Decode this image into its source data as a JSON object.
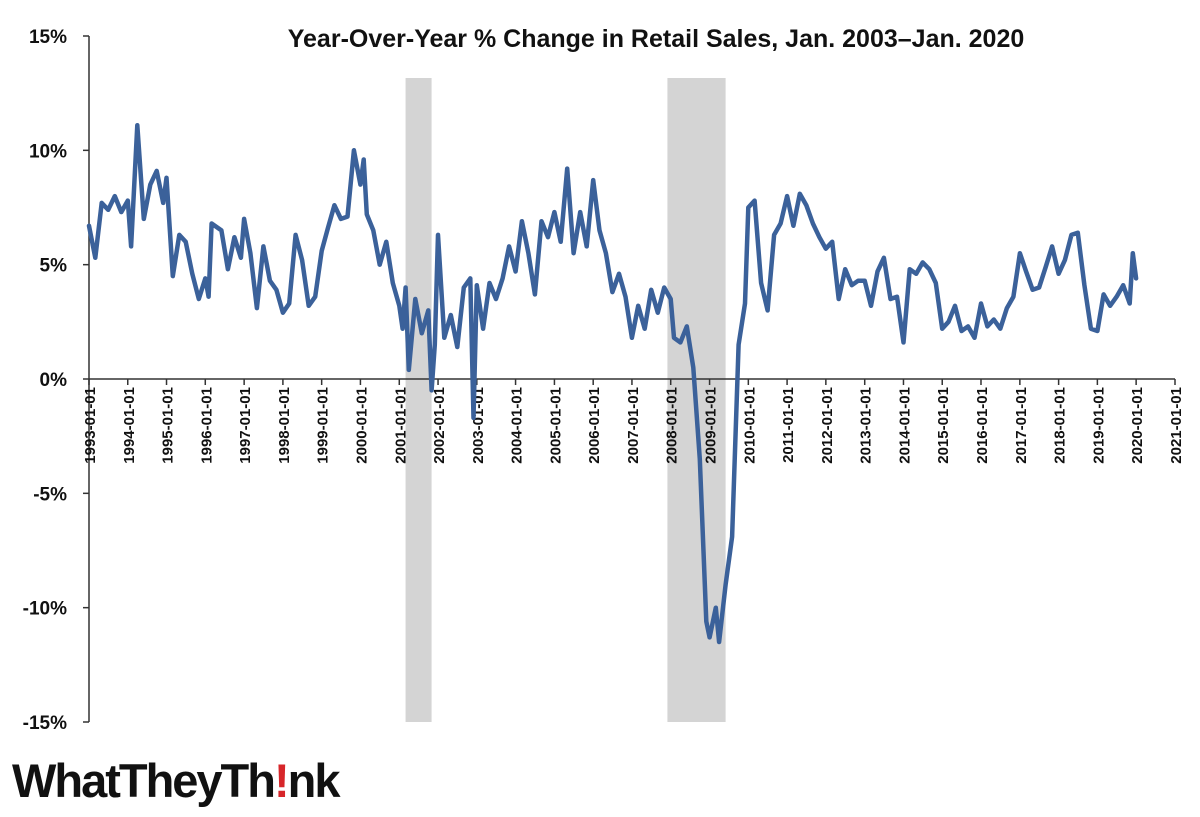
{
  "chart_data": {
    "type": "line",
    "title": "Year-Over-Year % Change in Retail Sales, Jan. 2003–Jan. 2020",
    "xlabel": "",
    "ylabel": "",
    "ylim": [
      -15,
      15
    ],
    "yticks": [
      15,
      10,
      5,
      0,
      -5,
      -10,
      -15
    ],
    "ytick_labels": [
      "15%",
      "10%",
      "5%",
      "0%",
      "-5%",
      "-10%",
      "-15%"
    ],
    "xlim": [
      "1993-01-01",
      "2021-01-01"
    ],
    "xtick_labels": [
      "1993-01-01",
      "1994-01-01",
      "1995-01-01",
      "1996-01-01",
      "1997-01-01",
      "1998-01-01",
      "1999-01-01",
      "2000-01-01",
      "2001-01-01",
      "2002-01-01",
      "2003-01-01",
      "2004-01-01",
      "2005-01-01",
      "2006-01-01",
      "2007-01-01",
      "2008-01-01",
      "2009-01-01",
      "2010-01-01",
      "2011-01-01",
      "2012-01-01",
      "2013-01-01",
      "2014-01-01",
      "2015-01-01",
      "2016-01-01",
      "2017-01-01",
      "2018-01-01",
      "2019-01-01",
      "2020-01-01",
      "2021-01-01"
    ],
    "grid": false,
    "recessions": [
      {
        "start": "2001-03-01",
        "end": "2001-11-01"
      },
      {
        "start": "2007-12-01",
        "end": "2009-06-01"
      }
    ],
    "series": [
      {
        "color": "#3b619a",
        "points": [
          [
            "1993-01-01",
            6.7
          ],
          [
            "1993-03-01",
            5.3
          ],
          [
            "1993-05-01",
            7.7
          ],
          [
            "1993-07-01",
            7.4
          ],
          [
            "1993-09-01",
            8.0
          ],
          [
            "1993-11-01",
            7.3
          ],
          [
            "1994-01-01",
            7.8
          ],
          [
            "1994-02-01",
            5.8
          ],
          [
            "1994-04-01",
            11.1
          ],
          [
            "1994-06-01",
            7.0
          ],
          [
            "1994-08-01",
            8.5
          ],
          [
            "1994-10-01",
            9.1
          ],
          [
            "1994-12-01",
            7.7
          ],
          [
            "1995-01-01",
            8.8
          ],
          [
            "1995-03-01",
            4.5
          ],
          [
            "1995-05-01",
            6.3
          ],
          [
            "1995-07-01",
            6.0
          ],
          [
            "1995-09-01",
            4.6
          ],
          [
            "1995-11-01",
            3.5
          ],
          [
            "1996-01-01",
            4.4
          ],
          [
            "1996-02-01",
            3.6
          ],
          [
            "1996-03-01",
            6.8
          ],
          [
            "1996-06-01",
            6.5
          ],
          [
            "1996-08-01",
            4.8
          ],
          [
            "1996-10-01",
            6.2
          ],
          [
            "1996-12-01",
            5.3
          ],
          [
            "1997-01-01",
            7.0
          ],
          [
            "1997-03-01",
            5.5
          ],
          [
            "1997-05-01",
            3.1
          ],
          [
            "1997-07-01",
            5.8
          ],
          [
            "1997-09-01",
            4.3
          ],
          [
            "1997-11-01",
            3.9
          ],
          [
            "1998-01-01",
            2.9
          ],
          [
            "1998-03-01",
            3.3
          ],
          [
            "1998-05-01",
            6.3
          ],
          [
            "1998-07-01",
            5.2
          ],
          [
            "1998-09-01",
            3.2
          ],
          [
            "1998-11-01",
            3.6
          ],
          [
            "1999-01-01",
            5.6
          ],
          [
            "1999-03-01",
            6.6
          ],
          [
            "1999-05-01",
            7.6
          ],
          [
            "1999-07-01",
            7.0
          ],
          [
            "1999-09-01",
            7.1
          ],
          [
            "1999-11-01",
            10.0
          ],
          [
            "2000-01-01",
            8.5
          ],
          [
            "2000-02-01",
            9.6
          ],
          [
            "2000-03-01",
            7.2
          ],
          [
            "2000-05-01",
            6.5
          ],
          [
            "2000-07-01",
            5.0
          ],
          [
            "2000-09-01",
            6.0
          ],
          [
            "2000-11-01",
            4.2
          ],
          [
            "2001-01-01",
            3.2
          ],
          [
            "2001-02-01",
            2.2
          ],
          [
            "2001-03-01",
            4.0
          ],
          [
            "2001-04-01",
            0.4
          ],
          [
            "2001-06-01",
            3.5
          ],
          [
            "2001-08-01",
            2.0
          ],
          [
            "2001-10-01",
            3.0
          ],
          [
            "2001-11-01",
            -0.5
          ],
          [
            "2001-12-01",
            1.5
          ],
          [
            "2002-01-01",
            6.3
          ],
          [
            "2002-03-01",
            1.8
          ],
          [
            "2002-05-01",
            2.8
          ],
          [
            "2002-07-01",
            1.4
          ],
          [
            "2002-09-01",
            4.0
          ],
          [
            "2002-11-01",
            4.4
          ],
          [
            "2002-12-01",
            -1.7
          ],
          [
            "2003-01-01",
            4.1
          ],
          [
            "2003-03-01",
            2.2
          ],
          [
            "2003-05-01",
            4.2
          ],
          [
            "2003-07-01",
            3.5
          ],
          [
            "2003-09-01",
            4.4
          ],
          [
            "2003-11-01",
            5.8
          ],
          [
            "2004-01-01",
            4.7
          ],
          [
            "2004-03-01",
            6.9
          ],
          [
            "2004-05-01",
            5.5
          ],
          [
            "2004-07-01",
            3.7
          ],
          [
            "2004-09-01",
            6.9
          ],
          [
            "2004-11-01",
            6.2
          ],
          [
            "2005-01-01",
            7.3
          ],
          [
            "2005-03-01",
            6.0
          ],
          [
            "2005-05-01",
            9.2
          ],
          [
            "2005-07-01",
            5.5
          ],
          [
            "2005-09-01",
            7.3
          ],
          [
            "2005-11-01",
            5.8
          ],
          [
            "2006-01-01",
            8.7
          ],
          [
            "2006-03-01",
            6.5
          ],
          [
            "2006-05-01",
            5.5
          ],
          [
            "2006-07-01",
            3.8
          ],
          [
            "2006-09-01",
            4.6
          ],
          [
            "2006-11-01",
            3.6
          ],
          [
            "2007-01-01",
            1.8
          ],
          [
            "2007-03-01",
            3.2
          ],
          [
            "2007-05-01",
            2.2
          ],
          [
            "2007-07-01",
            3.9
          ],
          [
            "2007-09-01",
            2.9
          ],
          [
            "2007-11-01",
            4.0
          ],
          [
            "2008-01-01",
            3.5
          ],
          [
            "2008-02-01",
            1.8
          ],
          [
            "2008-04-01",
            1.6
          ],
          [
            "2008-06-01",
            2.3
          ],
          [
            "2008-08-01",
            0.5
          ],
          [
            "2008-10-01",
            -3.5
          ],
          [
            "2008-12-01",
            -10.6
          ],
          [
            "2009-01-01",
            -11.3
          ],
          [
            "2009-03-01",
            -10.0
          ],
          [
            "2009-04-01",
            -11.5
          ],
          [
            "2009-06-01",
            -9.0
          ],
          [
            "2009-08-01",
            -6.9
          ],
          [
            "2009-10-01",
            1.5
          ],
          [
            "2009-12-01",
            3.3
          ],
          [
            "2010-01-01",
            7.5
          ],
          [
            "2010-03-01",
            7.8
          ],
          [
            "2010-05-01",
            4.2
          ],
          [
            "2010-07-01",
            3.0
          ],
          [
            "2010-09-01",
            6.3
          ],
          [
            "2010-11-01",
            6.8
          ],
          [
            "2011-01-01",
            8.0
          ],
          [
            "2011-03-01",
            6.7
          ],
          [
            "2011-05-01",
            8.1
          ],
          [
            "2011-07-01",
            7.6
          ],
          [
            "2011-09-01",
            6.8
          ],
          [
            "2011-11-01",
            6.2
          ],
          [
            "2012-01-01",
            5.7
          ],
          [
            "2012-03-01",
            6.0
          ],
          [
            "2012-05-01",
            3.5
          ],
          [
            "2012-07-01",
            4.8
          ],
          [
            "2012-09-01",
            4.1
          ],
          [
            "2012-11-01",
            4.3
          ],
          [
            "2013-01-01",
            4.3
          ],
          [
            "2013-03-01",
            3.2
          ],
          [
            "2013-05-01",
            4.7
          ],
          [
            "2013-07-01",
            5.3
          ],
          [
            "2013-09-01",
            3.5
          ],
          [
            "2013-11-01",
            3.6
          ],
          [
            "2014-01-01",
            1.6
          ],
          [
            "2014-03-01",
            4.8
          ],
          [
            "2014-05-01",
            4.6
          ],
          [
            "2014-07-01",
            5.1
          ],
          [
            "2014-09-01",
            4.8
          ],
          [
            "2014-11-01",
            4.2
          ],
          [
            "2015-01-01",
            2.2
          ],
          [
            "2015-03-01",
            2.5
          ],
          [
            "2015-05-01",
            3.2
          ],
          [
            "2015-07-01",
            2.1
          ],
          [
            "2015-09-01",
            2.3
          ],
          [
            "2015-11-01",
            1.8
          ],
          [
            "2016-01-01",
            3.3
          ],
          [
            "2016-03-01",
            2.3
          ],
          [
            "2016-05-01",
            2.6
          ],
          [
            "2016-07-01",
            2.2
          ],
          [
            "2016-09-01",
            3.1
          ],
          [
            "2016-11-01",
            3.6
          ],
          [
            "2017-01-01",
            5.5
          ],
          [
            "2017-03-01",
            4.7
          ],
          [
            "2017-05-01",
            3.9
          ],
          [
            "2017-07-01",
            4.0
          ],
          [
            "2017-09-01",
            4.9
          ],
          [
            "2017-11-01",
            5.8
          ],
          [
            "2018-01-01",
            4.6
          ],
          [
            "2018-03-01",
            5.2
          ],
          [
            "2018-05-01",
            6.3
          ],
          [
            "2018-07-01",
            6.4
          ],
          [
            "2018-09-01",
            4.1
          ],
          [
            "2018-11-01",
            2.2
          ],
          [
            "2019-01-01",
            2.1
          ],
          [
            "2019-03-01",
            3.7
          ],
          [
            "2019-05-01",
            3.2
          ],
          [
            "2019-07-01",
            3.6
          ],
          [
            "2019-09-01",
            4.1
          ],
          [
            "2019-11-01",
            3.3
          ],
          [
            "2019-12-01",
            5.5
          ],
          [
            "2020-01-01",
            4.4
          ]
        ]
      }
    ]
  },
  "logo": {
    "text_before": "WhatTheyTh",
    "text_after": "nk",
    "exclamation_color": "#d7262a"
  }
}
